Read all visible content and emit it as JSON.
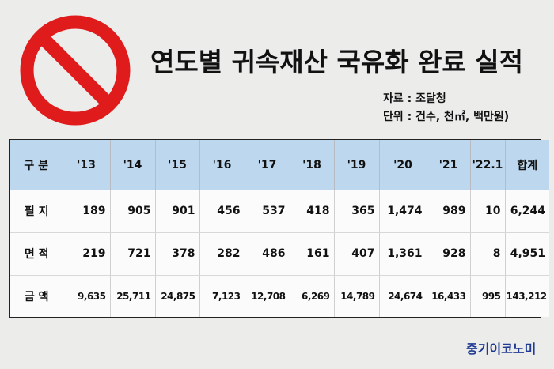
{
  "title": "연도별 귀속재산 국유화 완료 실적",
  "source": "자료 : 조달청",
  "unit": "단위 : 건수, 천㎡, 백만원)",
  "table": {
    "headers": [
      "구 분",
      "'13",
      "'14",
      "'15",
      "'16",
      "'17",
      "'18",
      "'19",
      "'20",
      "'21",
      "'22.1",
      "합계"
    ],
    "rows": [
      {
        "label": "필 지",
        "values": [
          "189",
          "905",
          "901",
          "456",
          "537",
          "418",
          "365",
          "1,474",
          "989",
          "10",
          "6,244"
        ]
      },
      {
        "label": "면 적",
        "values": [
          "219",
          "721",
          "378",
          "282",
          "486",
          "161",
          "407",
          "1,361",
          "928",
          "8",
          "4,951"
        ]
      },
      {
        "label": "금 액",
        "values": [
          "9,635",
          "25,711",
          "24,875",
          "7,123",
          "12,708",
          "6,269",
          "14,789",
          "24,674",
          "16,433",
          "995",
          "143,212"
        ]
      }
    ]
  },
  "brand": "중기이코노미",
  "colors": {
    "prohibition_red": "#e01b1b",
    "header_blue": "#bdd7ee",
    "brand_blue": "#1f3a93"
  }
}
